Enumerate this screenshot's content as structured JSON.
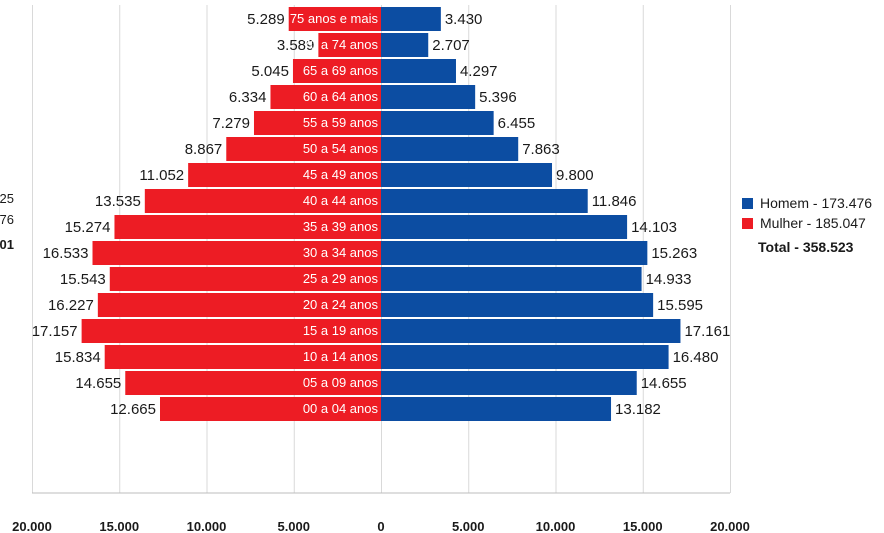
{
  "chart_data": {
    "type": "bar",
    "orientation": "horizontal",
    "categories": [
      "75 anos e mais",
      "70 a 74 anos",
      "65 a 69 anos",
      "60 a 64 anos",
      "55 a 59 anos",
      "50 a 54 anos",
      "45 a 49 anos",
      "40 a 44 anos",
      "35 a 39 anos",
      "30 a 34 anos",
      "25 a 29 anos",
      "20 a 24 anos",
      "15 a 19 anos",
      "10 a 14 anos",
      "05 a 09 anos",
      "00 a 04 anos"
    ],
    "series": [
      {
        "values": [
          5289,
          3589,
          5045,
          6334,
          7279,
          8867,
          11052,
          13535,
          15274,
          16533,
          15543,
          16227,
          17157,
          15834,
          14655,
          12665
        ],
        "labels": [
          "5.289",
          "3.589",
          "5.045",
          "6.334",
          "7.279",
          "8.867",
          "11.052",
          "13.535",
          "15.274",
          "16.533",
          "15.543",
          "16.227",
          "17.157",
          "15.834",
          "14.655",
          "12.665"
        ],
        "color": "#ed1c24",
        "side": "left"
      },
      {
        "values": [
          3430,
          2707,
          4297,
          5396,
          6455,
          7863,
          9800,
          11846,
          14103,
          15263,
          14933,
          15595,
          17161,
          16480,
          14655,
          13182
        ],
        "labels": [
          "3.430",
          "2.707",
          "4.297",
          "5.396",
          "6.455",
          "7.863",
          "9.800",
          "11.846",
          "14.103",
          "15.263",
          "14.933",
          "15.595",
          "17.161",
          "16.480",
          "14.655",
          "13.182"
        ],
        "color": "#0c4da2",
        "side": "right"
      }
    ],
    "x_ticks": [
      "20.000",
      "15.000",
      "10.000",
      "5.000",
      "0",
      "5.000",
      "10.000",
      "15.000",
      "20.000"
    ],
    "xlim": [
      -20000,
      20000
    ],
    "grid": true,
    "legend": {
      "placement": "right",
      "items": [
        {
          "label": "Homem - 173.476",
          "color": "#0c4da2"
        },
        {
          "label": "Mulher - 185.047",
          "color": "#ed1c24"
        }
      ],
      "total": "Total  -  358.523"
    },
    "cut_off_left_text": [
      "25",
      "76",
      "01"
    ]
  }
}
